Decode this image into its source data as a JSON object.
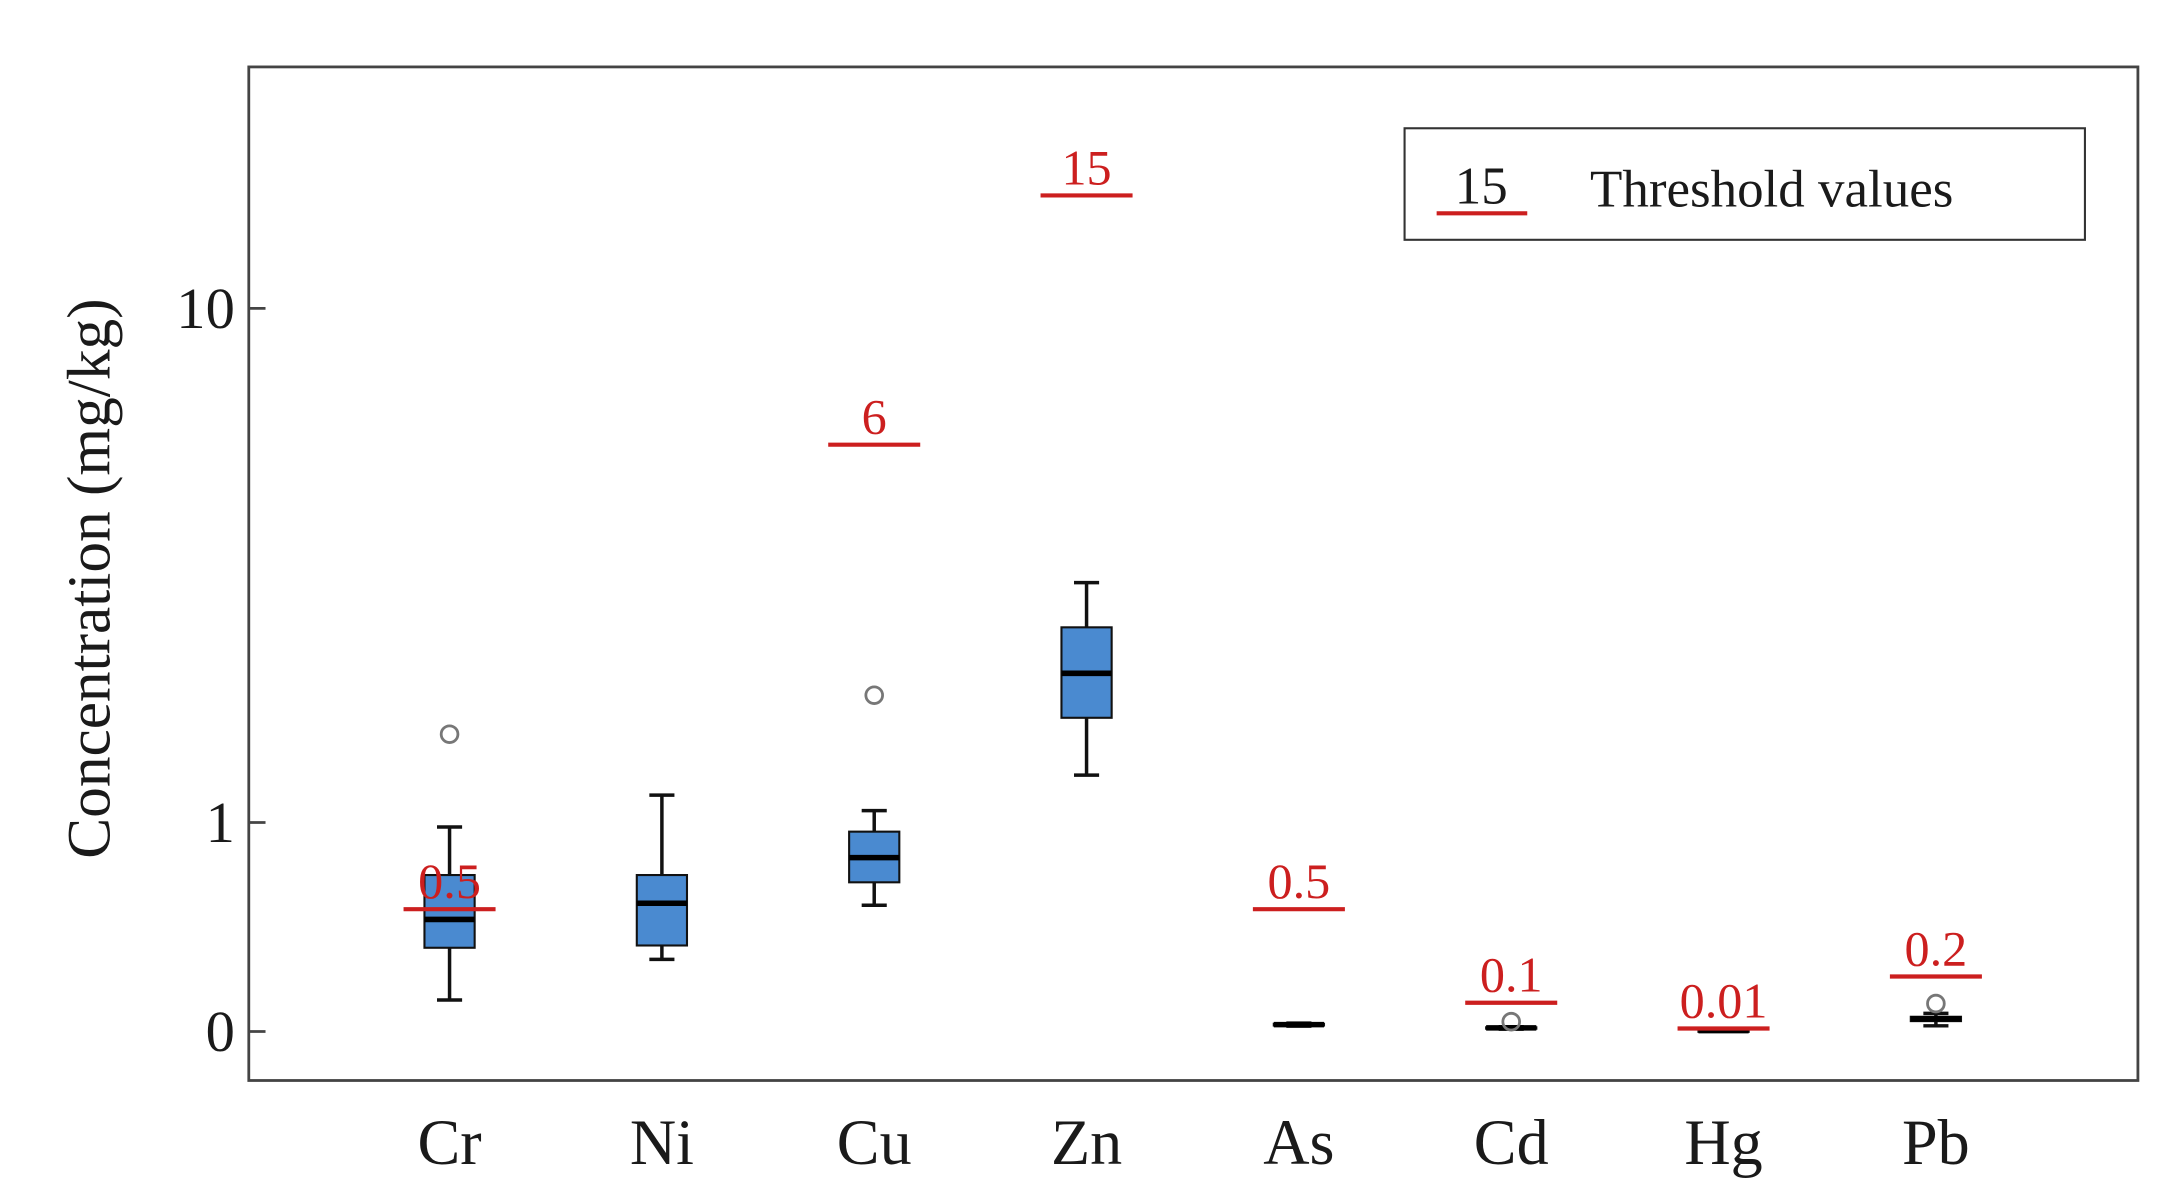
{
  "chart_data": {
    "type": "box",
    "y_label": "Concentration (mg/kg)",
    "yscale": "log1p",
    "ylim": [
      -0.15,
      23.5
    ],
    "yticks": [
      0,
      1,
      10
    ],
    "categories": [
      "Cr",
      "Ni",
      "Cu",
      "Zn",
      "As",
      "Cd",
      "Hg",
      "Pb"
    ],
    "box_color": "#4a8ad0",
    "boxes": [
      {
        "whisker_low": 0.11,
        "q1": 0.32,
        "median": 0.45,
        "q3": 0.68,
        "whisker_high": 0.97,
        "outliers": [
          1.68
        ]
      },
      {
        "whisker_low": 0.27,
        "q1": 0.33,
        "median": 0.53,
        "q3": 0.68,
        "whisker_high": 1.19,
        "outliers": []
      },
      {
        "whisker_low": 0.52,
        "q1": 0.64,
        "median": 0.78,
        "q3": 0.94,
        "whisker_high": 1.08,
        "outliers": [
          2.05
        ]
      },
      {
        "whisker_low": 1.34,
        "q1": 1.83,
        "median": 2.28,
        "q3": 2.82,
        "whisker_high": 3.43,
        "outliers": []
      },
      {
        "whisker_low": 0.018,
        "q1": 0.02,
        "median": 0.023,
        "q3": 0.026,
        "whisker_high": 0.028,
        "outliers": []
      },
      {
        "whisker_low": 0.008,
        "q1": 0.01,
        "median": 0.012,
        "q3": 0.014,
        "whisker_high": 0.016,
        "outliers": [
          0.033
        ]
      },
      {
        "whisker_low": 0.002,
        "q1": 0.0025,
        "median": 0.003,
        "q3": 0.0035,
        "whisker_high": 0.004,
        "outliers": []
      },
      {
        "whisker_low": 0.019,
        "q1": 0.035,
        "median": 0.043,
        "q3": 0.05,
        "whisker_high": 0.062,
        "outliers": [
          0.097
        ]
      }
    ],
    "threshold_color": "#cc1f1f",
    "thresholds": [
      0.5,
      null,
      6,
      15,
      0.5,
      0.1,
      0.01,
      0.2
    ],
    "legend": {
      "sample": 15,
      "label": "Threshold values"
    }
  }
}
